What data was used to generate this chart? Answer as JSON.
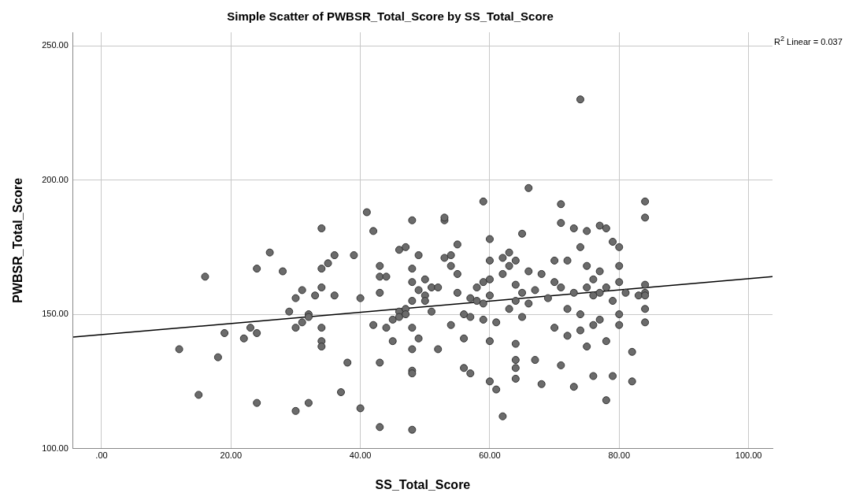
{
  "chart_data": {
    "type": "scatter",
    "title": "Simple Scatter of PWBSR_Total_Score by SS_Total_Score",
    "xlabel": "SS_Total_Score",
    "ylabel": "PWBSR_Total_Score",
    "annotations": [
      "R$^{2}$ Linear = 0.037"
    ],
    "xlim": [
      -4.4,
      103.7
    ],
    "ylim": [
      100,
      255
    ],
    "xticks": [
      {
        "value": 0,
        "label": ".00"
      },
      {
        "value": 20,
        "label": "20.00"
      },
      {
        "value": 40,
        "label": "40.00"
      },
      {
        "value": 60,
        "label": "60.00"
      },
      {
        "value": 80,
        "label": "80.00"
      },
      {
        "value": 100,
        "label": "100.00"
      }
    ],
    "yticks": [
      {
        "value": 100,
        "label": "100.00"
      },
      {
        "value": 150,
        "label": "150.00"
      },
      {
        "value": 200,
        "label": "200.00"
      },
      {
        "value": 250,
        "label": "250.00"
      }
    ],
    "grid": true,
    "marker": "circle",
    "series": [
      {
        "color": "#6b6b6b",
        "x": [
          12,
          15,
          16,
          18,
          19,
          22,
          23,
          24,
          24,
          24,
          26,
          28,
          29,
          30,
          30,
          30,
          31,
          31,
          32,
          32,
          32,
          33,
          34,
          34,
          34,
          34,
          34,
          34,
          35,
          36,
          36,
          37,
          38,
          39,
          40,
          40,
          41,
          42,
          42,
          43,
          43,
          43,
          43,
          43,
          44,
          44,
          45,
          45,
          46,
          46,
          46,
          47,
          47,
          47,
          48,
          48,
          48,
          48,
          48,
          48,
          48,
          48,
          48,
          49,
          49,
          49,
          50,
          50,
          50,
          51,
          51,
          52,
          52,
          53,
          53,
          53,
          54,
          54,
          54,
          55,
          55,
          55,
          56,
          56,
          56,
          57,
          57,
          57,
          58,
          58,
          59,
          59,
          59,
          59,
          60,
          60,
          60,
          60,
          60,
          60,
          61,
          61,
          62,
          62,
          62,
          63,
          63,
          63,
          64,
          64,
          64,
          64,
          64,
          64,
          64,
          65,
          65,
          65,
          66,
          66,
          66,
          67,
          67,
          68,
          68,
          69,
          70,
          70,
          70,
          71,
          71,
          71,
          71,
          72,
          72,
          72,
          73,
          73,
          73,
          74,
          74,
          74,
          74,
          75,
          75,
          75,
          75,
          76,
          76,
          76,
          76,
          77,
          77,
          77,
          77,
          78,
          78,
          78,
          78,
          79,
          79,
          79,
          80,
          80,
          80,
          80,
          80,
          81,
          82,
          82,
          83,
          84,
          84,
          84,
          84,
          84,
          84,
          84
        ],
        "values": [
          137,
          120,
          164,
          134,
          143,
          141,
          145,
          117,
          167,
          143,
          173,
          166,
          151,
          145,
          156,
          114,
          159,
          147,
          150,
          149,
          117,
          157,
          182,
          167,
          160,
          145,
          140,
          138,
          169,
          172,
          157,
          121,
          132,
          172,
          156,
          115,
          188,
          181,
          146,
          168,
          164,
          158,
          132,
          108,
          164,
          145,
          148,
          140,
          174,
          151,
          149,
          175,
          152,
          150,
          185,
          167,
          162,
          155,
          145,
          137,
          129,
          128,
          107,
          172,
          159,
          141,
          163,
          157,
          155,
          160,
          151,
          137,
          160,
          185,
          186,
          171,
          172,
          168,
          146,
          176,
          165,
          158,
          150,
          141,
          130,
          156,
          149,
          128,
          155,
          160,
          192,
          162,
          154,
          148,
          178,
          170,
          163,
          157,
          140,
          125,
          147,
          122,
          171,
          165,
          112,
          173,
          168,
          152,
          170,
          161,
          155,
          139,
          133,
          130,
          126,
          180,
          158,
          149,
          197,
          166,
          154,
          159,
          133,
          165,
          124,
          156,
          170,
          162,
          145,
          191,
          184,
          160,
          131,
          170,
          152,
          142,
          182,
          158,
          123,
          175,
          150,
          144,
          230,
          181,
          168,
          160,
          138,
          163,
          157,
          146,
          127,
          183,
          166,
          158,
          148,
          182,
          160,
          140,
          118,
          177,
          155,
          127,
          175,
          168,
          162,
          150,
          146,
          158,
          136,
          125,
          157,
          192,
          186,
          161,
          158,
          157,
          152,
          147
        ]
      },
      {
        "type": "line",
        "color": "#000000",
        "marker": "none",
        "x": [
          -4.4,
          103.7
        ],
        "values": [
          141.5,
          164.0
        ]
      }
    ]
  }
}
